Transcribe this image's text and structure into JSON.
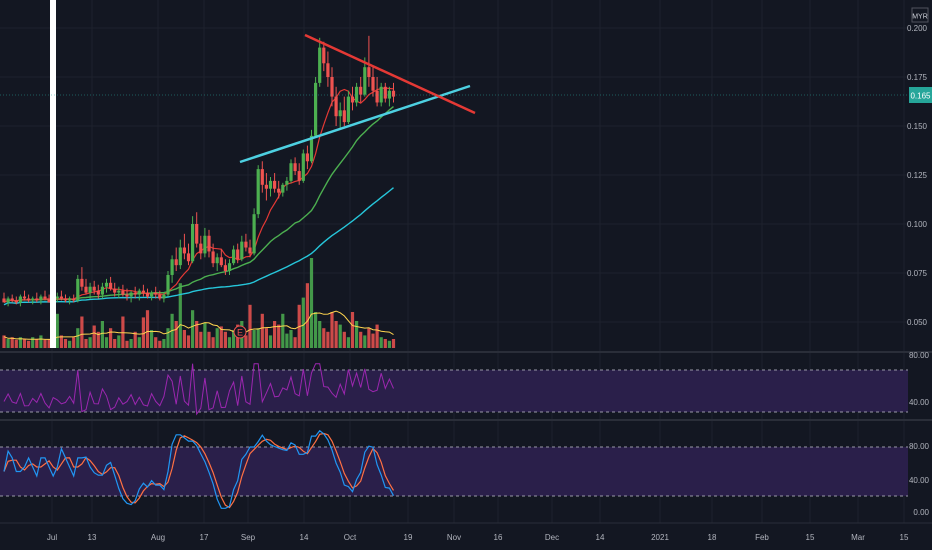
{
  "chart_data": {
    "type": "candlestick",
    "currency": "MYR",
    "last_price": "0.165",
    "price_axis": {
      "ticks": [
        "0.200",
        "0.175",
        "0.150",
        "0.125",
        "0.100",
        "0.075",
        "0.050"
      ],
      "range": [
        0.04,
        0.2
      ]
    },
    "x_ticks": [
      "Jul",
      "13",
      "Aug",
      "17",
      "Sep",
      "14",
      "Oct",
      "19",
      "Nov",
      "16",
      "Dec",
      "14",
      "2021",
      "18",
      "Feb",
      "15",
      "Mar",
      "15"
    ],
    "candles": [
      [
        0.062,
        0.065,
        0.06,
        0.06
      ],
      [
        0.06,
        0.063,
        0.058,
        0.062
      ],
      [
        0.062,
        0.064,
        0.06,
        0.061
      ],
      [
        0.061,
        0.063,
        0.059,
        0.06
      ],
      [
        0.06,
        0.064,
        0.058,
        0.063
      ],
      [
        0.063,
        0.066,
        0.061,
        0.062
      ],
      [
        0.062,
        0.064,
        0.06,
        0.061
      ],
      [
        0.061,
        0.063,
        0.059,
        0.062
      ],
      [
        0.062,
        0.065,
        0.06,
        0.061
      ],
      [
        0.061,
        0.064,
        0.059,
        0.063
      ],
      [
        0.063,
        0.066,
        0.061,
        0.062
      ],
      [
        0.062,
        0.064,
        0.06,
        0.06
      ],
      [
        0.06,
        0.063,
        0.058,
        0.062
      ],
      [
        0.062,
        0.065,
        0.06,
        0.063
      ],
      [
        0.063,
        0.066,
        0.061,
        0.062
      ],
      [
        0.062,
        0.064,
        0.06,
        0.061
      ],
      [
        0.061,
        0.063,
        0.059,
        0.062
      ],
      [
        0.062,
        0.064,
        0.06,
        0.061
      ],
      [
        0.061,
        0.074,
        0.06,
        0.072
      ],
      [
        0.072,
        0.078,
        0.066,
        0.068
      ],
      [
        0.068,
        0.072,
        0.064,
        0.065
      ],
      [
        0.065,
        0.07,
        0.062,
        0.068
      ],
      [
        0.068,
        0.071,
        0.064,
        0.066
      ],
      [
        0.066,
        0.069,
        0.062,
        0.064
      ],
      [
        0.064,
        0.07,
        0.062,
        0.068
      ],
      [
        0.068,
        0.072,
        0.065,
        0.07
      ],
      [
        0.07,
        0.073,
        0.066,
        0.067
      ],
      [
        0.067,
        0.07,
        0.063,
        0.065
      ],
      [
        0.065,
        0.068,
        0.062,
        0.066
      ],
      [
        0.066,
        0.069,
        0.063,
        0.064
      ],
      [
        0.064,
        0.067,
        0.061,
        0.063
      ],
      [
        0.063,
        0.066,
        0.06,
        0.065
      ],
      [
        0.065,
        0.068,
        0.062,
        0.064
      ],
      [
        0.064,
        0.067,
        0.061,
        0.066
      ],
      [
        0.066,
        0.069,
        0.063,
        0.065
      ],
      [
        0.065,
        0.067,
        0.062,
        0.063
      ],
      [
        0.063,
        0.066,
        0.061,
        0.065
      ],
      [
        0.065,
        0.068,
        0.062,
        0.064
      ],
      [
        0.064,
        0.066,
        0.061,
        0.062
      ],
      [
        0.062,
        0.065,
        0.06,
        0.064
      ],
      [
        0.064,
        0.076,
        0.063,
        0.074
      ],
      [
        0.074,
        0.084,
        0.07,
        0.082
      ],
      [
        0.082,
        0.088,
        0.076,
        0.079
      ],
      [
        0.079,
        0.092,
        0.077,
        0.088
      ],
      [
        0.088,
        0.095,
        0.082,
        0.085
      ],
      [
        0.085,
        0.09,
        0.079,
        0.081
      ],
      [
        0.081,
        0.104,
        0.08,
        0.1
      ],
      [
        0.1,
        0.106,
        0.088,
        0.09
      ],
      [
        0.09,
        0.094,
        0.082,
        0.085
      ],
      [
        0.085,
        0.098,
        0.083,
        0.094
      ],
      [
        0.094,
        0.097,
        0.083,
        0.086
      ],
      [
        0.086,
        0.09,
        0.078,
        0.08
      ],
      [
        0.08,
        0.085,
        0.076,
        0.083
      ],
      [
        0.083,
        0.087,
        0.078,
        0.079
      ],
      [
        0.079,
        0.082,
        0.074,
        0.076
      ],
      [
        0.076,
        0.082,
        0.074,
        0.08
      ],
      [
        0.08,
        0.089,
        0.079,
        0.087
      ],
      [
        0.087,
        0.09,
        0.08,
        0.082
      ],
      [
        0.082,
        0.094,
        0.081,
        0.091
      ],
      [
        0.091,
        0.095,
        0.086,
        0.088
      ],
      [
        0.088,
        0.092,
        0.083,
        0.085
      ],
      [
        0.085,
        0.108,
        0.084,
        0.105
      ],
      [
        0.105,
        0.13,
        0.103,
        0.128
      ],
      [
        0.128,
        0.132,
        0.116,
        0.12
      ],
      [
        0.12,
        0.126,
        0.112,
        0.118
      ],
      [
        0.118,
        0.124,
        0.114,
        0.122
      ],
      [
        0.122,
        0.126,
        0.116,
        0.118
      ],
      [
        0.118,
        0.122,
        0.113,
        0.116
      ],
      [
        0.116,
        0.121,
        0.114,
        0.12
      ],
      [
        0.12,
        0.124,
        0.117,
        0.122
      ],
      [
        0.122,
        0.133,
        0.121,
        0.131
      ],
      [
        0.131,
        0.134,
        0.125,
        0.127
      ],
      [
        0.127,
        0.131,
        0.12,
        0.122
      ],
      [
        0.122,
        0.138,
        0.121,
        0.136
      ],
      [
        0.136,
        0.14,
        0.128,
        0.132
      ],
      [
        0.132,
        0.148,
        0.131,
        0.145
      ],
      [
        0.145,
        0.175,
        0.144,
        0.172
      ],
      [
        0.172,
        0.195,
        0.17,
        0.19
      ],
      [
        0.19,
        0.193,
        0.178,
        0.182
      ],
      [
        0.182,
        0.188,
        0.17,
        0.175
      ],
      [
        0.175,
        0.18,
        0.16,
        0.165
      ],
      [
        0.165,
        0.17,
        0.15,
        0.155
      ],
      [
        0.155,
        0.162,
        0.148,
        0.158
      ],
      [
        0.158,
        0.165,
        0.15,
        0.152
      ],
      [
        0.152,
        0.168,
        0.151,
        0.165
      ],
      [
        0.165,
        0.17,
        0.158,
        0.162
      ],
      [
        0.162,
        0.172,
        0.16,
        0.17
      ],
      [
        0.17,
        0.175,
        0.162,
        0.166
      ],
      [
        0.166,
        0.185,
        0.165,
        0.18
      ],
      [
        0.18,
        0.196,
        0.17,
        0.175
      ],
      [
        0.175,
        0.18,
        0.165,
        0.168
      ],
      [
        0.168,
        0.175,
        0.16,
        0.162
      ],
      [
        0.162,
        0.172,
        0.16,
        0.17
      ],
      [
        0.17,
        0.172,
        0.162,
        0.164
      ],
      [
        0.164,
        0.17,
        0.16,
        0.168
      ],
      [
        0.168,
        0.172,
        0.162,
        0.165
      ]
    ],
    "volume": [
      0.14,
      0.1,
      0.12,
      0.09,
      0.12,
      0.1,
      0.08,
      0.12,
      0.1,
      0.14,
      0.09,
      0.1,
      0.12,
      0.38,
      0.14,
      0.1,
      0.08,
      0.12,
      0.22,
      0.35,
      0.1,
      0.12,
      0.25,
      0.18,
      0.3,
      0.12,
      0.22,
      0.1,
      0.14,
      0.35,
      0.08,
      0.1,
      0.18,
      0.12,
      0.34,
      0.42,
      0.2,
      0.12,
      0.08,
      0.1,
      0.22,
      0.38,
      0.3,
      0.72,
      0.2,
      0.14,
      0.42,
      0.3,
      0.18,
      0.28,
      0.18,
      0.12,
      0.22,
      0.24,
      0.18,
      0.12,
      0.2,
      0.26,
      0.3,
      0.14,
      0.48,
      0.2,
      0.22,
      0.38,
      0.22,
      0.14,
      0.3,
      0.26,
      0.38,
      0.16,
      0.2,
      0.12,
      0.48,
      0.56,
      0.72,
      1.0,
      0.4,
      0.3,
      0.22,
      0.18,
      0.4,
      0.3,
      0.26,
      0.18,
      0.12,
      0.4,
      0.3,
      0.18,
      0.14,
      0.22,
      0.16,
      0.26,
      0.12,
      0.1,
      0.08,
      0.1
    ],
    "rsi_axis": {
      "ticks": [
        "80.00",
        "40.00"
      ],
      "range": [
        20,
        90
      ]
    },
    "stoch_axis": {
      "ticks": [
        "80.00",
        "40.00",
        "0.00"
      ],
      "range": [
        -10,
        115
      ]
    },
    "colors": {
      "up": "#4caf50",
      "down": "#ef5350",
      "ma_fast": "#e53935",
      "ma_mid": "#4caf50",
      "ma_slow": "#26c6da",
      "trend_support": "#4dd0e1",
      "trend_resistance": "#e53935",
      "rsi": "#9c27b0",
      "stoch_k": "#2196f3",
      "stoch_d": "#ff7043",
      "band": "#2a1f4a",
      "vol_ma": "#ffd54f",
      "marker": "#ffffff"
    },
    "event_marker": "E"
  }
}
